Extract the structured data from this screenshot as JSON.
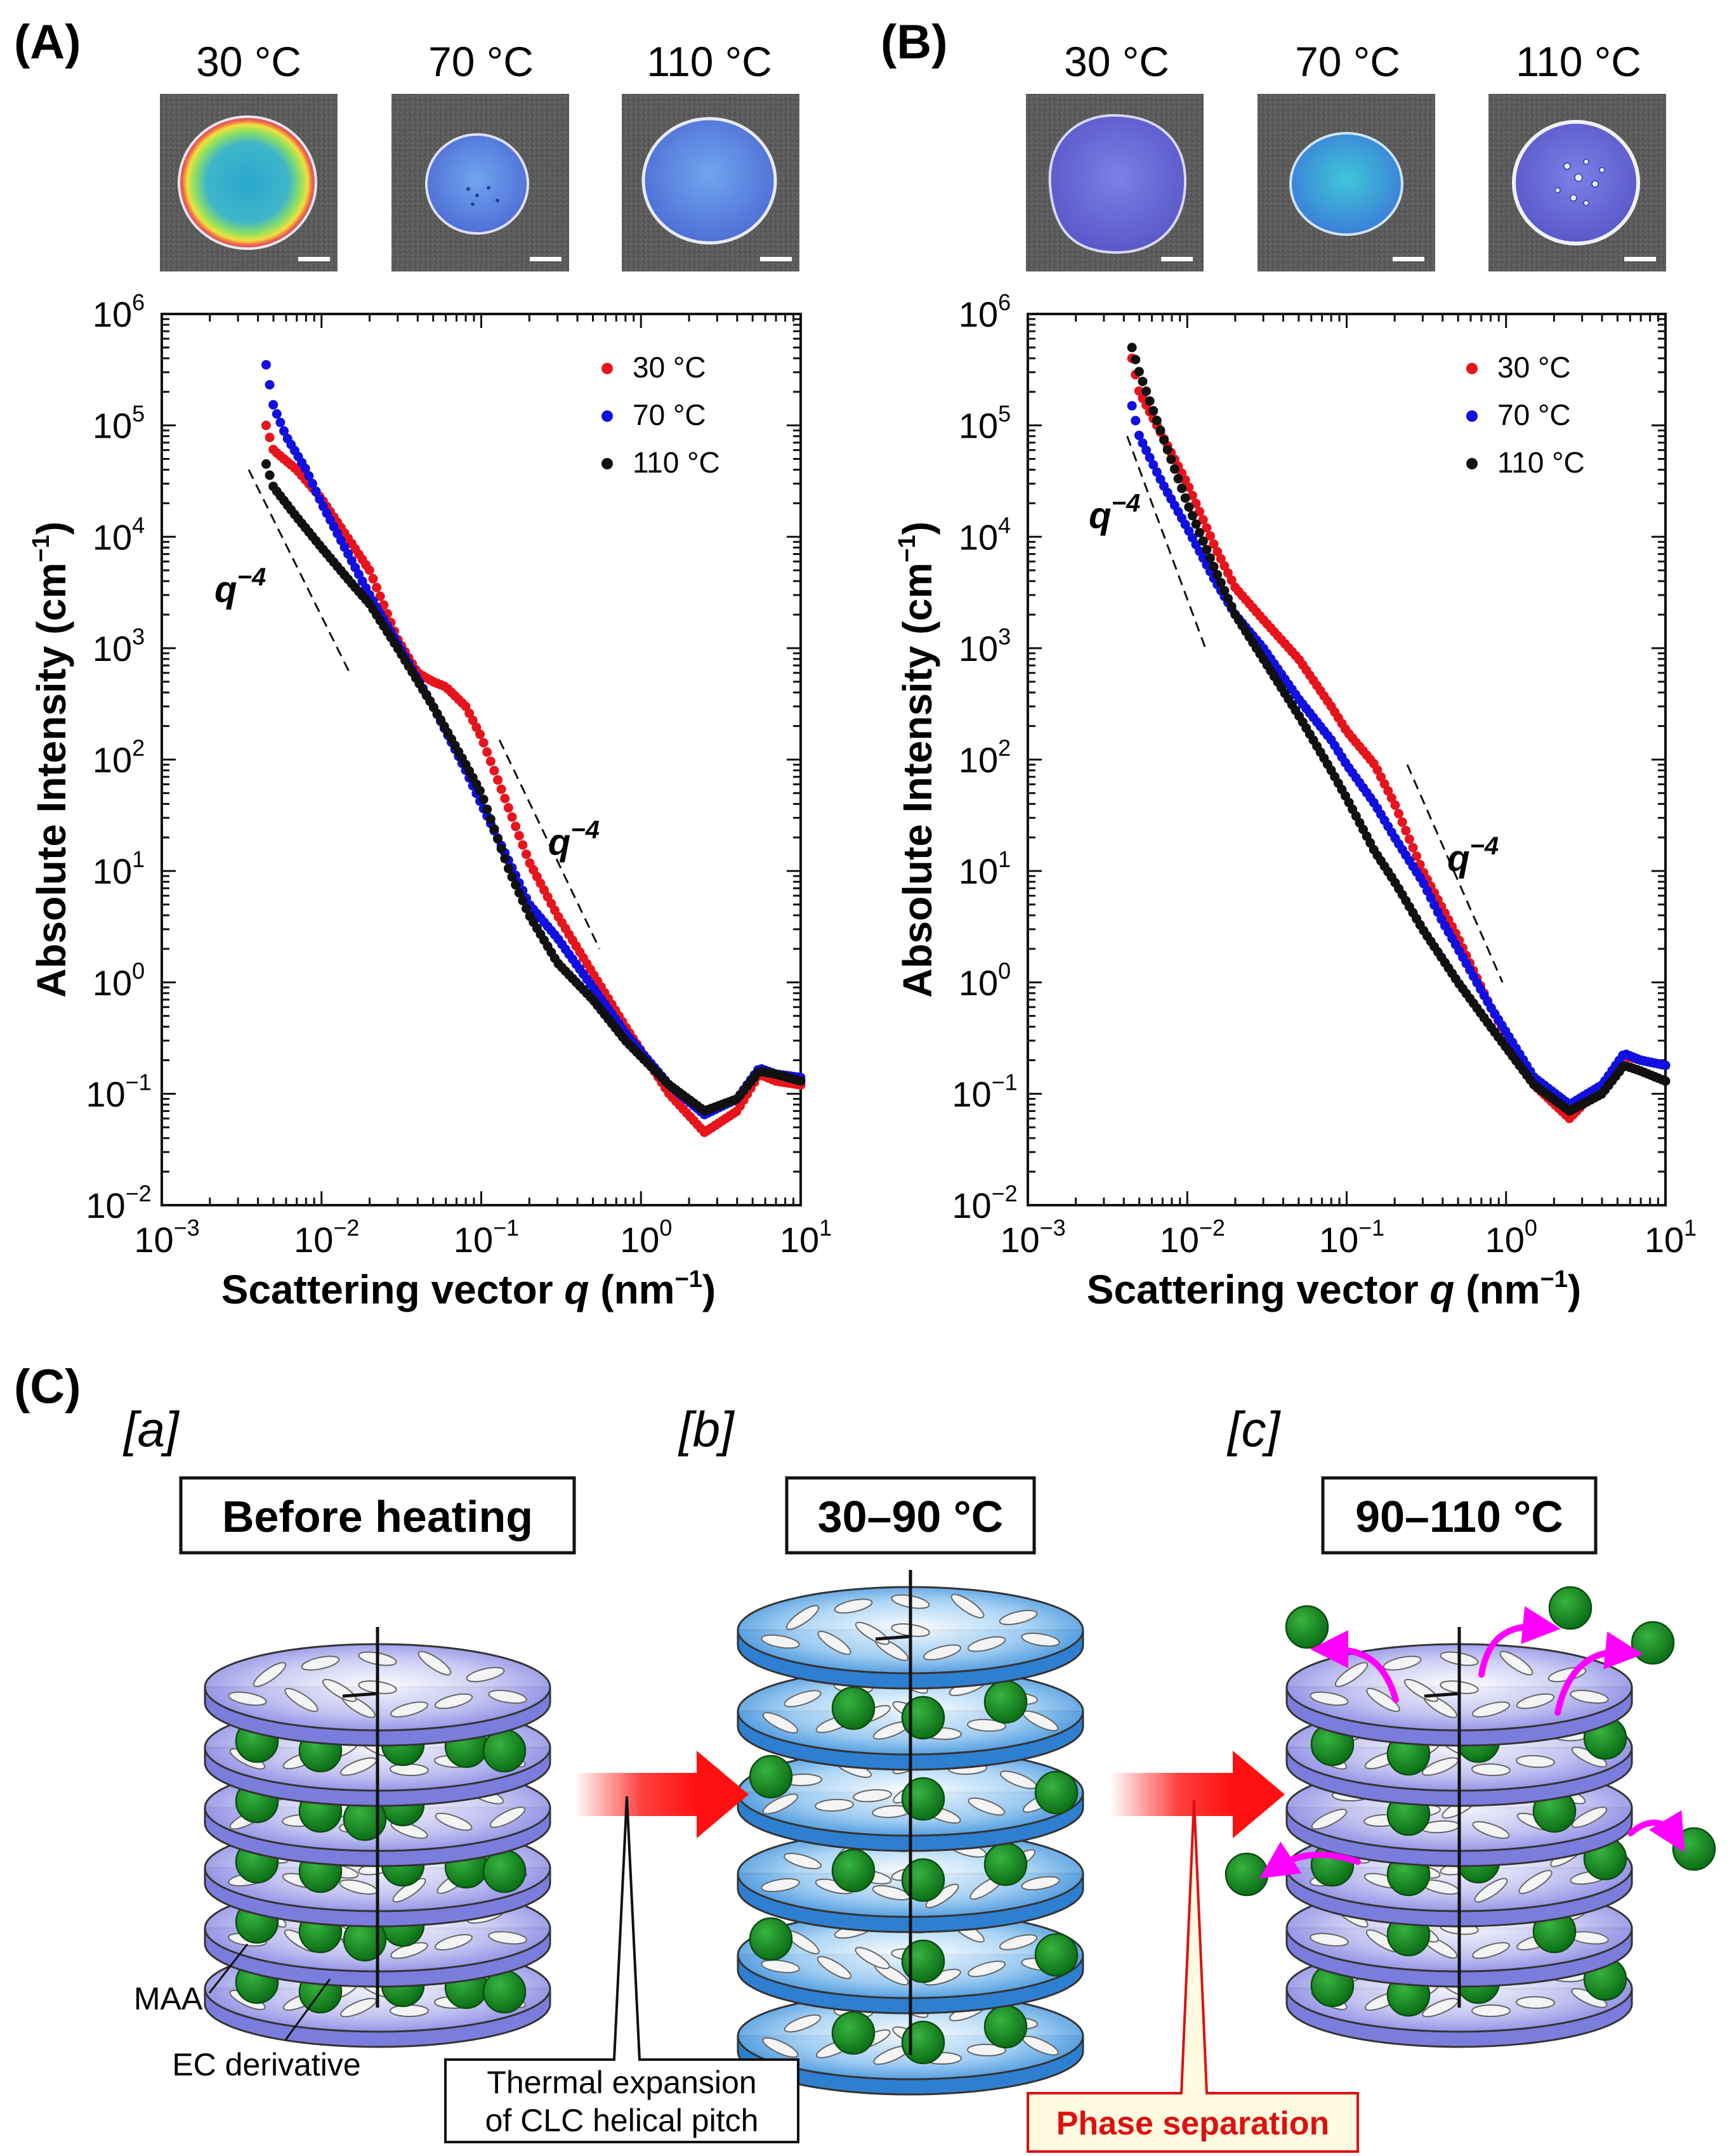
{
  "panels": [
    {
      "label": "(A)",
      "photo_temps": [
        "30 °C",
        "70 °C",
        "110 °C"
      ]
    },
    {
      "label": "(B)",
      "photo_temps": [
        "30 °C",
        "70 °C",
        "110 °C"
      ]
    }
  ],
  "chart_data": [
    {
      "type": "scatter",
      "panel": "(A)",
      "xscale": "log",
      "yscale": "log",
      "xlim": [
        0.001,
        10
      ],
      "ylim": [
        0.01,
        1000000
      ],
      "xlabel_prefix": "Scattering vector ",
      "xlabel_var": "q",
      "xlabel_unit": " (nm",
      "xlabel_unit_exp": "−1",
      "xlabel_close": ")",
      "ylabel": "Absolute Intensity (cm",
      "ylabel_exp": "−1",
      "ylabel_close": ")",
      "x_ticks": [
        {
          "base": "10",
          "exp": "−3",
          "v": 0.001
        },
        {
          "base": "10",
          "exp": "−2",
          "v": 0.01
        },
        {
          "base": "10",
          "exp": "−1",
          "v": 0.1
        },
        {
          "base": "10",
          "exp": "0",
          "v": 1
        },
        {
          "base": "10",
          "exp": "1",
          "v": 10
        }
      ],
      "y_ticks": [
        {
          "base": "10",
          "exp": "−2",
          "v": 0.01
        },
        {
          "base": "10",
          "exp": "−1",
          "v": 0.1
        },
        {
          "base": "10",
          "exp": "0",
          "v": 1
        },
        {
          "base": "10",
          "exp": "1",
          "v": 10
        },
        {
          "base": "10",
          "exp": "2",
          "v": 100
        },
        {
          "base": "10",
          "exp": "3",
          "v": 1000
        },
        {
          "base": "10",
          "exp": "4",
          "v": 10000
        },
        {
          "base": "10",
          "exp": "5",
          "v": 100000
        },
        {
          "base": "10",
          "exp": "6",
          "v": 1000000
        }
      ],
      "legend_position": "top-right",
      "series": [
        {
          "name": "30 °C",
          "color": "#e8141c",
          "knots": [
            [
              0.0045,
              100000
            ],
            [
              0.005,
              60000
            ],
            [
              0.007,
              40000
            ],
            [
              0.01,
              22000
            ],
            [
              0.02,
              5000
            ],
            [
              0.03,
              1200
            ],
            [
              0.04,
              600
            ],
            [
              0.05,
              500
            ],
            [
              0.06,
              450
            ],
            [
              0.08,
              300
            ],
            [
              0.1,
              160
            ],
            [
              0.13,
              60
            ],
            [
              0.2,
              12
            ],
            [
              0.3,
              4
            ],
            [
              0.5,
              1.2
            ],
            [
              0.8,
              0.4
            ],
            [
              1.5,
              0.1
            ],
            [
              2.5,
              0.045
            ],
            [
              4,
              0.07
            ],
            [
              5.5,
              0.15
            ],
            [
              7,
              0.13
            ],
            [
              10,
              0.12
            ]
          ]
        },
        {
          "name": "70 °C",
          "color": "#1010e0",
          "knots": [
            [
              0.0045,
              350000
            ],
            [
              0.005,
              150000
            ],
            [
              0.006,
              80000
            ],
            [
              0.008,
              40000
            ],
            [
              0.01,
              20000
            ],
            [
              0.02,
              3000
            ],
            [
              0.03,
              1100
            ],
            [
              0.05,
              300
            ],
            [
              0.08,
              80
            ],
            [
              0.1,
              40
            ],
            [
              0.15,
              12
            ],
            [
              0.2,
              5
            ],
            [
              0.3,
              2.5
            ],
            [
              0.5,
              0.9
            ],
            [
              0.8,
              0.35
            ],
            [
              1.5,
              0.12
            ],
            [
              2.5,
              0.065
            ],
            [
              4,
              0.09
            ],
            [
              5.5,
              0.17
            ],
            [
              7,
              0.15
            ],
            [
              10,
              0.14
            ]
          ]
        },
        {
          "name": "110 °C",
          "color": "#111111",
          "knots": [
            [
              0.0045,
              45000
            ],
            [
              0.005,
              28000
            ],
            [
              0.007,
              15000
            ],
            [
              0.01,
              8000
            ],
            [
              0.015,
              4000
            ],
            [
              0.02,
              2500
            ],
            [
              0.03,
              1000
            ],
            [
              0.05,
              300
            ],
            [
              0.08,
              90
            ],
            [
              0.1,
              50
            ],
            [
              0.15,
              10
            ],
            [
              0.2,
              4
            ],
            [
              0.3,
              1.5
            ],
            [
              0.5,
              0.7
            ],
            [
              0.8,
              0.3
            ],
            [
              1.5,
              0.12
            ],
            [
              2.5,
              0.07
            ],
            [
              4,
              0.09
            ],
            [
              5.5,
              0.16
            ],
            [
              7,
              0.15
            ],
            [
              10,
              0.13
            ]
          ]
        }
      ],
      "annotations": [
        {
          "text": "q",
          "exp": "−4",
          "line": [
            [
              0.0035,
              40000
            ],
            [
              0.015,
              600
            ]
          ],
          "label_at": [
            0.0031,
            2600
          ]
        },
        {
          "text": "q",
          "exp": "−4",
          "line": [
            [
              0.13,
              150
            ],
            [
              0.55,
              2
            ]
          ],
          "label_at": [
            0.38,
            14
          ]
        }
      ]
    },
    {
      "type": "scatter",
      "panel": "(B)",
      "xscale": "log",
      "yscale": "log",
      "xlim": [
        0.001,
        10
      ],
      "ylim": [
        0.01,
        1000000
      ],
      "xlabel_prefix": "Scattering vector ",
      "xlabel_var": "q",
      "xlabel_unit": " (nm",
      "xlabel_unit_exp": "−1",
      "xlabel_close": ")",
      "ylabel": "Absolute Intensity (cm",
      "ylabel_exp": "−1",
      "ylabel_close": ")",
      "x_ticks": [
        {
          "base": "10",
          "exp": "−3",
          "v": 0.001
        },
        {
          "base": "10",
          "exp": "−2",
          "v": 0.01
        },
        {
          "base": "10",
          "exp": "−1",
          "v": 0.1
        },
        {
          "base": "10",
          "exp": "0",
          "v": 1
        },
        {
          "base": "10",
          "exp": "1",
          "v": 10
        }
      ],
      "y_ticks": [
        {
          "base": "10",
          "exp": "−2",
          "v": 0.01
        },
        {
          "base": "10",
          "exp": "−1",
          "v": 0.1
        },
        {
          "base": "10",
          "exp": "0",
          "v": 1
        },
        {
          "base": "10",
          "exp": "1",
          "v": 10
        },
        {
          "base": "10",
          "exp": "2",
          "v": 100
        },
        {
          "base": "10",
          "exp": "3",
          "v": 1000
        },
        {
          "base": "10",
          "exp": "4",
          "v": 10000
        },
        {
          "base": "10",
          "exp": "5",
          "v": 100000
        },
        {
          "base": "10",
          "exp": "6",
          "v": 1000000
        }
      ],
      "legend_position": "top-right",
      "series": [
        {
          "name": "30 °C",
          "color": "#e8141c",
          "knots": [
            [
              0.0045,
              400000
            ],
            [
              0.005,
              200000
            ],
            [
              0.007,
              80000
            ],
            [
              0.01,
              30000
            ],
            [
              0.015,
              8000
            ],
            [
              0.02,
              3500
            ],
            [
              0.03,
              1800
            ],
            [
              0.05,
              800
            ],
            [
              0.08,
              300
            ],
            [
              0.1,
              180
            ],
            [
              0.15,
              90
            ],
            [
              0.2,
              40
            ],
            [
              0.3,
              10
            ],
            [
              0.5,
              2.5
            ],
            [
              0.8,
              0.6
            ],
            [
              1.5,
              0.12
            ],
            [
              2.5,
              0.06
            ],
            [
              4,
              0.12
            ],
            [
              5.5,
              0.22
            ],
            [
              7,
              0.2
            ],
            [
              10,
              0.18
            ]
          ]
        },
        {
          "name": "70 °C",
          "color": "#1010e0",
          "knots": [
            [
              0.0045,
              150000
            ],
            [
              0.005,
              80000
            ],
            [
              0.007,
              30000
            ],
            [
              0.01,
              12000
            ],
            [
              0.015,
              4000
            ],
            [
              0.02,
              2000
            ],
            [
              0.03,
              1000
            ],
            [
              0.05,
              350
            ],
            [
              0.08,
              150
            ],
            [
              0.1,
              90
            ],
            [
              0.15,
              40
            ],
            [
              0.2,
              20
            ],
            [
              0.3,
              8
            ],
            [
              0.4,
              3.5
            ],
            [
              0.5,
              2
            ],
            [
              0.8,
              0.6
            ],
            [
              1.5,
              0.14
            ],
            [
              2.5,
              0.08
            ],
            [
              4,
              0.12
            ],
            [
              5.5,
              0.23
            ],
            [
              7,
              0.2
            ],
            [
              10,
              0.18
            ]
          ]
        },
        {
          "name": "110 °C",
          "color": "#111111",
          "knots": [
            [
              0.0045,
              500000
            ],
            [
              0.005,
              300000
            ],
            [
              0.007,
              80000
            ],
            [
              0.01,
              20000
            ],
            [
              0.015,
              5000
            ],
            [
              0.02,
              2000
            ],
            [
              0.03,
              800
            ],
            [
              0.05,
              250
            ],
            [
              0.08,
              80
            ],
            [
              0.1,
              45
            ],
            [
              0.15,
              15
            ],
            [
              0.2,
              8
            ],
            [
              0.3,
              3
            ],
            [
              0.5,
              1
            ],
            [
              0.8,
              0.4
            ],
            [
              1.5,
              0.12
            ],
            [
              2.5,
              0.07
            ],
            [
              4,
              0.1
            ],
            [
              5.5,
              0.18
            ],
            [
              7,
              0.16
            ],
            [
              10,
              0.13
            ]
          ]
        }
      ],
      "annotations": [
        {
          "text": "q",
          "exp": "−4",
          "line": [
            [
              0.0042,
              80000
            ],
            [
              0.013,
              1000
            ]
          ],
          "label_at": [
            0.0035,
            12000
          ]
        },
        {
          "text": "q",
          "exp": "−4",
          "line": [
            [
              0.24,
              90
            ],
            [
              0.95,
              1
            ]
          ],
          "label_at": [
            0.62,
            10
          ]
        }
      ]
    }
  ],
  "schematic": {
    "panel_label": "(C)",
    "steps": [
      {
        "tag": "[a]",
        "box": "Before heating"
      },
      {
        "tag": "[b]",
        "box": "30–90 °C"
      },
      {
        "tag": "[c]",
        "box": "90–110 °C"
      }
    ],
    "labels": {
      "maa": "MAA",
      "ec": "EC derivative"
    },
    "callouts": {
      "thermal_line1": "Thermal expansion",
      "thermal_line2": "of CLC helical pitch",
      "phase": "Phase separation"
    },
    "colors": {
      "purple_disc": "#8f8fe8",
      "blue_disc": "#4a9de0",
      "particle": "#15891f",
      "arrow_red": "#ff1010",
      "magenta": "#ff00ff",
      "phase_text": "#dd1111",
      "phase_bg": "#fffbe0"
    }
  }
}
